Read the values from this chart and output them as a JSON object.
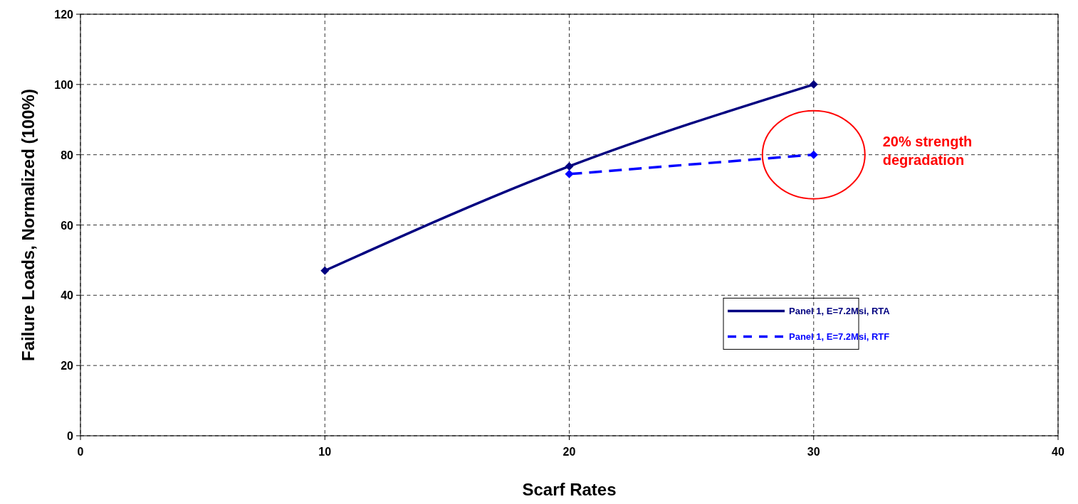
{
  "chart_data": {
    "type": "line",
    "xlabel": "Scarf Rates",
    "ylabel": "Failure Loads, Normalized (100%)",
    "xlim": [
      0,
      40
    ],
    "xticks": [
      0,
      10,
      20,
      30,
      40
    ],
    "ylim": [
      0,
      120
    ],
    "yticks": [
      0,
      20,
      40,
      60,
      80,
      100,
      120
    ],
    "grid": true,
    "legend": "bottom right",
    "marker": "diamond",
    "series": [
      {
        "name": "Panel 1, E=7.2Msi, RTA",
        "color": "#000080",
        "x": [
          10,
          20,
          30
        ],
        "values": [
          47,
          76.7,
          100
        ],
        "line_style": "solid"
      },
      {
        "name": "Panel 1, E=7.2Msi, RTF",
        "color": "#0000ff",
        "x": [
          20,
          30
        ],
        "values": [
          74.5,
          80
        ],
        "line_style": "dashed"
      }
    ],
    "annotations": [
      "20% strength degradation"
    ]
  }
}
